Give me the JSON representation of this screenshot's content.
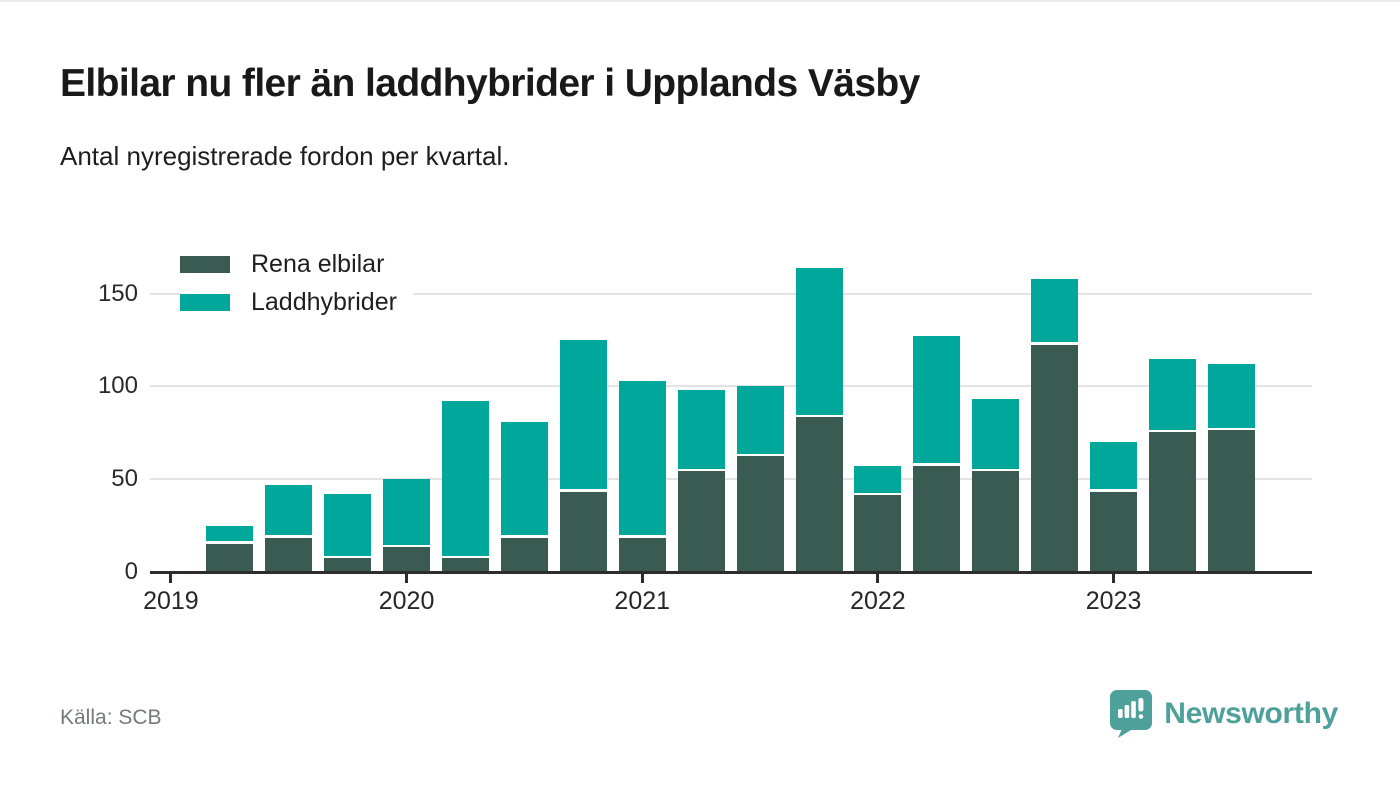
{
  "header": {
    "title": "Elbilar nu fler än laddhybrider i Upplands Väsby",
    "subtitle": "Antal nyregistrerade fordon per kvartal."
  },
  "chart_data": {
    "type": "bar",
    "stacked": true,
    "title": "Elbilar nu fler än laddhybrider i Upplands Väsby",
    "subtitle": "Antal nyregistrerade fordon per kvartal.",
    "xlabel": "",
    "ylabel": "",
    "categories": [
      "2019 Q2",
      "2019 Q3",
      "2019 Q4",
      "2020 Q1",
      "2020 Q2",
      "2020 Q3",
      "2020 Q4",
      "2021 Q1",
      "2021 Q2",
      "2021 Q3",
      "2021 Q4",
      "2022 Q1",
      "2022 Q2",
      "2022 Q3",
      "2022 Q4",
      "2023 Q1",
      "2023 Q2",
      "2023 Q3"
    ],
    "series": [
      {
        "name": "Rena elbilar",
        "color": "#3a5b52",
        "values": [
          16,
          19,
          8,
          14,
          8,
          19,
          44,
          19,
          55,
          63,
          84,
          42,
          58,
          55,
          123,
          44,
          76,
          77
        ]
      },
      {
        "name": "Laddhybrider",
        "color": "#00a89c",
        "values": [
          9,
          28,
          34,
          36,
          84,
          62,
          81,
          84,
          43,
          37,
          80,
          15,
          69,
          38,
          35,
          26,
          39,
          35
        ]
      }
    ],
    "y_ticks": [
      0,
      50,
      100,
      150
    ],
    "ylim": [
      0,
      183
    ],
    "x_ticks": [
      {
        "label": "2019",
        "slot": -1
      },
      {
        "label": "2020",
        "slot": 3
      },
      {
        "label": "2021",
        "slot": 7
      },
      {
        "label": "2022",
        "slot": 11
      },
      {
        "label": "2023",
        "slot": 15
      }
    ],
    "grid": "horizontal",
    "legend_position": "top-left"
  },
  "footer": {
    "source": "Källa: SCB",
    "brand": "Newsworthy"
  },
  "colors": {
    "rena_elbilar": "#3a5b52",
    "laddhybrider": "#00a89c",
    "gridline": "#e3e3e6",
    "axis": "#2d2d2d",
    "brand_teal": "#4da19a",
    "source_gray": "#75787c"
  }
}
